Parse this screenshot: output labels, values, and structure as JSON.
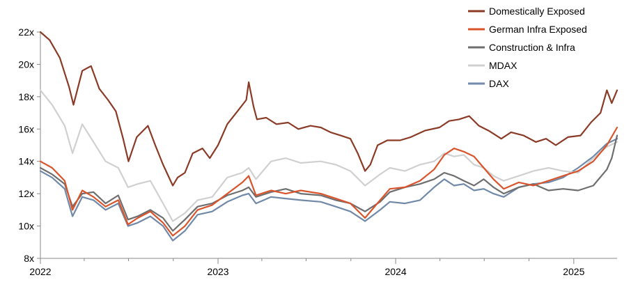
{
  "chart_data": {
    "type": "line",
    "title": "",
    "xlabel": "",
    "ylabel": "",
    "ylim": [
      8,
      22
    ],
    "xlim": [
      "2022-01-01",
      "2025-03-31"
    ],
    "grid": false,
    "legend_position": "top-right",
    "y_ticks": [
      {
        "value": 8,
        "label": "8x"
      },
      {
        "value": 10,
        "label": "10x"
      },
      {
        "value": 12,
        "label": "12x"
      },
      {
        "value": 14,
        "label": "14x"
      },
      {
        "value": 16,
        "label": "16x"
      },
      {
        "value": 18,
        "label": "18x"
      },
      {
        "value": 20,
        "label": "20x"
      },
      {
        "value": 22,
        "label": "22x"
      }
    ],
    "x_ticks": [
      {
        "date": "2022-01-01",
        "label": "2022"
      },
      {
        "date": "2023-01-01",
        "label": "2023"
      },
      {
        "date": "2024-01-01",
        "label": "2024"
      },
      {
        "date": "2025-01-01",
        "label": "2025"
      }
    ],
    "series": [
      {
        "name": "Domestically Exposed",
        "color": "#8B3A26",
        "points": [
          [
            "2022-01-01",
            22.0
          ],
          [
            "2022-01-20",
            21.5
          ],
          [
            "2022-02-10",
            20.4
          ],
          [
            "2022-03-01",
            18.6
          ],
          [
            "2022-03-10",
            17.5
          ],
          [
            "2022-03-28",
            19.6
          ],
          [
            "2022-04-15",
            19.9
          ],
          [
            "2022-05-02",
            18.5
          ],
          [
            "2022-05-20",
            17.8
          ],
          [
            "2022-06-05",
            17.1
          ],
          [
            "2022-06-20",
            15.4
          ],
          [
            "2022-07-01",
            14.0
          ],
          [
            "2022-07-18",
            15.5
          ],
          [
            "2022-08-10",
            16.2
          ],
          [
            "2022-08-25",
            15.0
          ],
          [
            "2022-09-10",
            13.8
          ],
          [
            "2022-09-30",
            12.5
          ],
          [
            "2022-10-10",
            13.0
          ],
          [
            "2022-10-25",
            13.3
          ],
          [
            "2022-11-10",
            14.5
          ],
          [
            "2022-11-30",
            14.8
          ],
          [
            "2022-12-15",
            14.2
          ],
          [
            "2023-01-01",
            15.0
          ],
          [
            "2023-01-20",
            16.3
          ],
          [
            "2023-02-10",
            17.1
          ],
          [
            "2023-02-28",
            17.8
          ],
          [
            "2023-03-05",
            18.9
          ],
          [
            "2023-03-15",
            17.4
          ],
          [
            "2023-03-22",
            16.6
          ],
          [
            "2023-04-10",
            16.7
          ],
          [
            "2023-05-01",
            16.3
          ],
          [
            "2023-05-25",
            16.4
          ],
          [
            "2023-06-15",
            16.0
          ],
          [
            "2023-07-10",
            16.2
          ],
          [
            "2023-07-31",
            16.1
          ],
          [
            "2023-08-20",
            15.8
          ],
          [
            "2023-09-10",
            15.6
          ],
          [
            "2023-09-30",
            15.4
          ],
          [
            "2023-10-15",
            14.5
          ],
          [
            "2023-10-30",
            13.4
          ],
          [
            "2023-11-10",
            13.8
          ],
          [
            "2023-11-25",
            15.0
          ],
          [
            "2023-12-15",
            15.3
          ],
          [
            "2024-01-10",
            15.3
          ],
          [
            "2024-02-01",
            15.5
          ],
          [
            "2024-03-01",
            15.9
          ],
          [
            "2024-03-31",
            16.1
          ],
          [
            "2024-04-20",
            16.5
          ],
          [
            "2024-05-10",
            16.6
          ],
          [
            "2024-05-31",
            16.8
          ],
          [
            "2024-06-20",
            16.2
          ],
          [
            "2024-07-10",
            15.9
          ],
          [
            "2024-08-05",
            15.4
          ],
          [
            "2024-08-25",
            15.8
          ],
          [
            "2024-09-20",
            15.6
          ],
          [
            "2024-10-15",
            15.2
          ],
          [
            "2024-11-05",
            15.4
          ],
          [
            "2024-11-25",
            15.0
          ],
          [
            "2024-12-20",
            15.5
          ],
          [
            "2025-01-15",
            15.6
          ],
          [
            "2025-02-05",
            16.4
          ],
          [
            "2025-02-25",
            17.0
          ],
          [
            "2025-03-10",
            18.4
          ],
          [
            "2025-03-20",
            17.6
          ],
          [
            "2025-03-31",
            18.4
          ]
        ]
      },
      {
        "name": "German Infra Exposed",
        "color": "#D9542B",
        "points": [
          [
            "2022-01-01",
            14.0
          ],
          [
            "2022-01-25",
            13.6
          ],
          [
            "2022-02-20",
            12.8
          ],
          [
            "2022-03-08",
            11.0
          ],
          [
            "2022-03-28",
            12.2
          ],
          [
            "2022-04-20",
            11.8
          ],
          [
            "2022-05-15",
            11.2
          ],
          [
            "2022-06-10",
            11.6
          ],
          [
            "2022-06-30",
            10.1
          ],
          [
            "2022-07-20",
            10.5
          ],
          [
            "2022-08-15",
            10.9
          ],
          [
            "2022-09-10",
            10.2
          ],
          [
            "2022-09-30",
            9.4
          ],
          [
            "2022-10-25",
            10.0
          ],
          [
            "2022-11-20",
            11.0
          ],
          [
            "2022-12-20",
            11.3
          ],
          [
            "2023-01-20",
            12.0
          ],
          [
            "2023-02-20",
            12.7
          ],
          [
            "2023-03-05",
            13.1
          ],
          [
            "2023-03-20",
            11.9
          ],
          [
            "2023-04-20",
            12.2
          ],
          [
            "2023-05-20",
            12.0
          ],
          [
            "2023-06-20",
            12.2
          ],
          [
            "2023-07-31",
            12.0
          ],
          [
            "2023-08-31",
            11.7
          ],
          [
            "2023-09-30",
            11.4
          ],
          [
            "2023-10-30",
            10.5
          ],
          [
            "2023-11-30",
            11.6
          ],
          [
            "2023-12-20",
            12.3
          ],
          [
            "2024-01-20",
            12.4
          ],
          [
            "2024-02-20",
            12.8
          ],
          [
            "2024-03-20",
            13.5
          ],
          [
            "2024-04-10",
            14.4
          ],
          [
            "2024-04-30",
            14.8
          ],
          [
            "2024-05-20",
            14.6
          ],
          [
            "2024-06-10",
            14.3
          ],
          [
            "2024-06-30",
            13.6
          ],
          [
            "2024-07-20",
            12.9
          ],
          [
            "2024-08-10",
            12.3
          ],
          [
            "2024-09-10",
            12.7
          ],
          [
            "2024-10-10",
            12.5
          ],
          [
            "2024-11-10",
            12.8
          ],
          [
            "2024-12-10",
            13.1
          ],
          [
            "2025-01-10",
            13.4
          ],
          [
            "2025-02-10",
            14.0
          ],
          [
            "2025-03-10",
            15.0
          ],
          [
            "2025-03-31",
            16.1
          ]
        ]
      },
      {
        "name": "Construction & Infra",
        "color": "#6E6E6E",
        "points": [
          [
            "2022-01-01",
            13.6
          ],
          [
            "2022-01-25",
            13.2
          ],
          [
            "2022-02-20",
            12.6
          ],
          [
            "2022-03-08",
            11.2
          ],
          [
            "2022-03-28",
            12.0
          ],
          [
            "2022-04-20",
            12.1
          ],
          [
            "2022-05-15",
            11.4
          ],
          [
            "2022-06-10",
            11.9
          ],
          [
            "2022-06-30",
            10.4
          ],
          [
            "2022-07-20",
            10.6
          ],
          [
            "2022-08-15",
            11.0
          ],
          [
            "2022-09-10",
            10.5
          ],
          [
            "2022-09-30",
            9.7
          ],
          [
            "2022-10-25",
            10.4
          ],
          [
            "2022-11-20",
            11.2
          ],
          [
            "2022-12-20",
            11.4
          ],
          [
            "2023-01-20",
            11.9
          ],
          [
            "2023-02-20",
            12.2
          ],
          [
            "2023-03-05",
            12.4
          ],
          [
            "2023-03-20",
            11.8
          ],
          [
            "2023-04-20",
            12.1
          ],
          [
            "2023-05-20",
            12.3
          ],
          [
            "2023-06-20",
            12.0
          ],
          [
            "2023-07-31",
            11.9
          ],
          [
            "2023-08-31",
            11.6
          ],
          [
            "2023-09-30",
            11.4
          ],
          [
            "2023-10-30",
            10.9
          ],
          [
            "2023-11-30",
            11.5
          ],
          [
            "2023-12-20",
            12.1
          ],
          [
            "2024-01-20",
            12.4
          ],
          [
            "2024-02-20",
            12.6
          ],
          [
            "2024-03-20",
            12.9
          ],
          [
            "2024-04-10",
            13.3
          ],
          [
            "2024-04-30",
            13.1
          ],
          [
            "2024-05-20",
            12.8
          ],
          [
            "2024-06-10",
            12.5
          ],
          [
            "2024-06-30",
            12.9
          ],
          [
            "2024-07-20",
            12.4
          ],
          [
            "2024-08-10",
            12.0
          ],
          [
            "2024-09-10",
            12.4
          ],
          [
            "2024-10-10",
            12.6
          ],
          [
            "2024-11-10",
            12.2
          ],
          [
            "2024-12-10",
            12.3
          ],
          [
            "2025-01-10",
            12.2
          ],
          [
            "2025-02-10",
            12.5
          ],
          [
            "2025-03-10",
            13.5
          ],
          [
            "2025-03-20",
            14.2
          ],
          [
            "2025-03-31",
            15.6
          ]
        ]
      },
      {
        "name": "MDAX",
        "color": "#D0D0D0",
        "points": [
          [
            "2022-01-01",
            18.4
          ],
          [
            "2022-01-25",
            17.5
          ],
          [
            "2022-02-20",
            16.2
          ],
          [
            "2022-03-08",
            14.5
          ],
          [
            "2022-03-28",
            16.3
          ],
          [
            "2022-04-20",
            15.2
          ],
          [
            "2022-05-15",
            14.0
          ],
          [
            "2022-06-10",
            13.6
          ],
          [
            "2022-06-30",
            12.4
          ],
          [
            "2022-07-20",
            12.6
          ],
          [
            "2022-08-15",
            12.8
          ],
          [
            "2022-09-10",
            11.4
          ],
          [
            "2022-09-30",
            10.3
          ],
          [
            "2022-10-25",
            10.8
          ],
          [
            "2022-11-20",
            11.6
          ],
          [
            "2022-12-20",
            11.8
          ],
          [
            "2023-01-20",
            13.0
          ],
          [
            "2023-02-20",
            13.3
          ],
          [
            "2023-03-05",
            13.6
          ],
          [
            "2023-03-20",
            12.9
          ],
          [
            "2023-04-20",
            14.0
          ],
          [
            "2023-05-20",
            14.2
          ],
          [
            "2023-06-20",
            13.9
          ],
          [
            "2023-07-31",
            14.0
          ],
          [
            "2023-08-31",
            13.8
          ],
          [
            "2023-09-30",
            13.4
          ],
          [
            "2023-10-30",
            12.5
          ],
          [
            "2023-11-30",
            13.2
          ],
          [
            "2023-12-20",
            13.6
          ],
          [
            "2024-01-20",
            13.4
          ],
          [
            "2024-02-20",
            13.8
          ],
          [
            "2024-03-20",
            14.0
          ],
          [
            "2024-04-10",
            14.5
          ],
          [
            "2024-04-30",
            14.3
          ],
          [
            "2024-05-20",
            14.4
          ],
          [
            "2024-06-10",
            13.8
          ],
          [
            "2024-06-30",
            13.6
          ],
          [
            "2024-07-20",
            13.1
          ],
          [
            "2024-08-10",
            12.8
          ],
          [
            "2024-09-10",
            13.1
          ],
          [
            "2024-10-10",
            13.4
          ],
          [
            "2024-11-10",
            13.6
          ],
          [
            "2024-12-10",
            13.4
          ],
          [
            "2025-01-10",
            13.3
          ],
          [
            "2025-02-10",
            14.2
          ],
          [
            "2025-03-10",
            14.9
          ],
          [
            "2025-03-31",
            15.2
          ]
        ]
      },
      {
        "name": "DAX",
        "color": "#7189A8",
        "points": [
          [
            "2022-01-01",
            13.4
          ],
          [
            "2022-01-25",
            13.0
          ],
          [
            "2022-02-20",
            12.3
          ],
          [
            "2022-03-08",
            10.6
          ],
          [
            "2022-03-28",
            11.8
          ],
          [
            "2022-04-20",
            11.6
          ],
          [
            "2022-05-15",
            11.0
          ],
          [
            "2022-06-10",
            11.4
          ],
          [
            "2022-06-30",
            10.0
          ],
          [
            "2022-07-20",
            10.2
          ],
          [
            "2022-08-15",
            10.6
          ],
          [
            "2022-09-10",
            10.0
          ],
          [
            "2022-09-30",
            9.1
          ],
          [
            "2022-10-25",
            9.7
          ],
          [
            "2022-11-20",
            10.7
          ],
          [
            "2022-12-20",
            10.9
          ],
          [
            "2023-01-20",
            11.5
          ],
          [
            "2023-02-20",
            11.9
          ],
          [
            "2023-03-05",
            12.0
          ],
          [
            "2023-03-20",
            11.4
          ],
          [
            "2023-04-20",
            11.8
          ],
          [
            "2023-05-20",
            11.7
          ],
          [
            "2023-06-20",
            11.6
          ],
          [
            "2023-07-31",
            11.5
          ],
          [
            "2023-08-31",
            11.2
          ],
          [
            "2023-09-30",
            10.9
          ],
          [
            "2023-10-30",
            10.3
          ],
          [
            "2023-11-30",
            11.0
          ],
          [
            "2023-12-20",
            11.5
          ],
          [
            "2024-01-20",
            11.4
          ],
          [
            "2024-02-20",
            11.6
          ],
          [
            "2024-03-20",
            12.4
          ],
          [
            "2024-04-10",
            12.9
          ],
          [
            "2024-04-30",
            12.5
          ],
          [
            "2024-05-20",
            12.6
          ],
          [
            "2024-06-10",
            12.2
          ],
          [
            "2024-06-30",
            12.3
          ],
          [
            "2024-07-20",
            12.0
          ],
          [
            "2024-08-10",
            11.8
          ],
          [
            "2024-09-10",
            12.4
          ],
          [
            "2024-10-10",
            12.6
          ],
          [
            "2024-11-10",
            12.7
          ],
          [
            "2024-12-10",
            13.0
          ],
          [
            "2025-01-10",
            13.6
          ],
          [
            "2025-02-10",
            14.3
          ],
          [
            "2025-03-10",
            15.1
          ],
          [
            "2025-03-31",
            15.4
          ]
        ]
      }
    ]
  }
}
